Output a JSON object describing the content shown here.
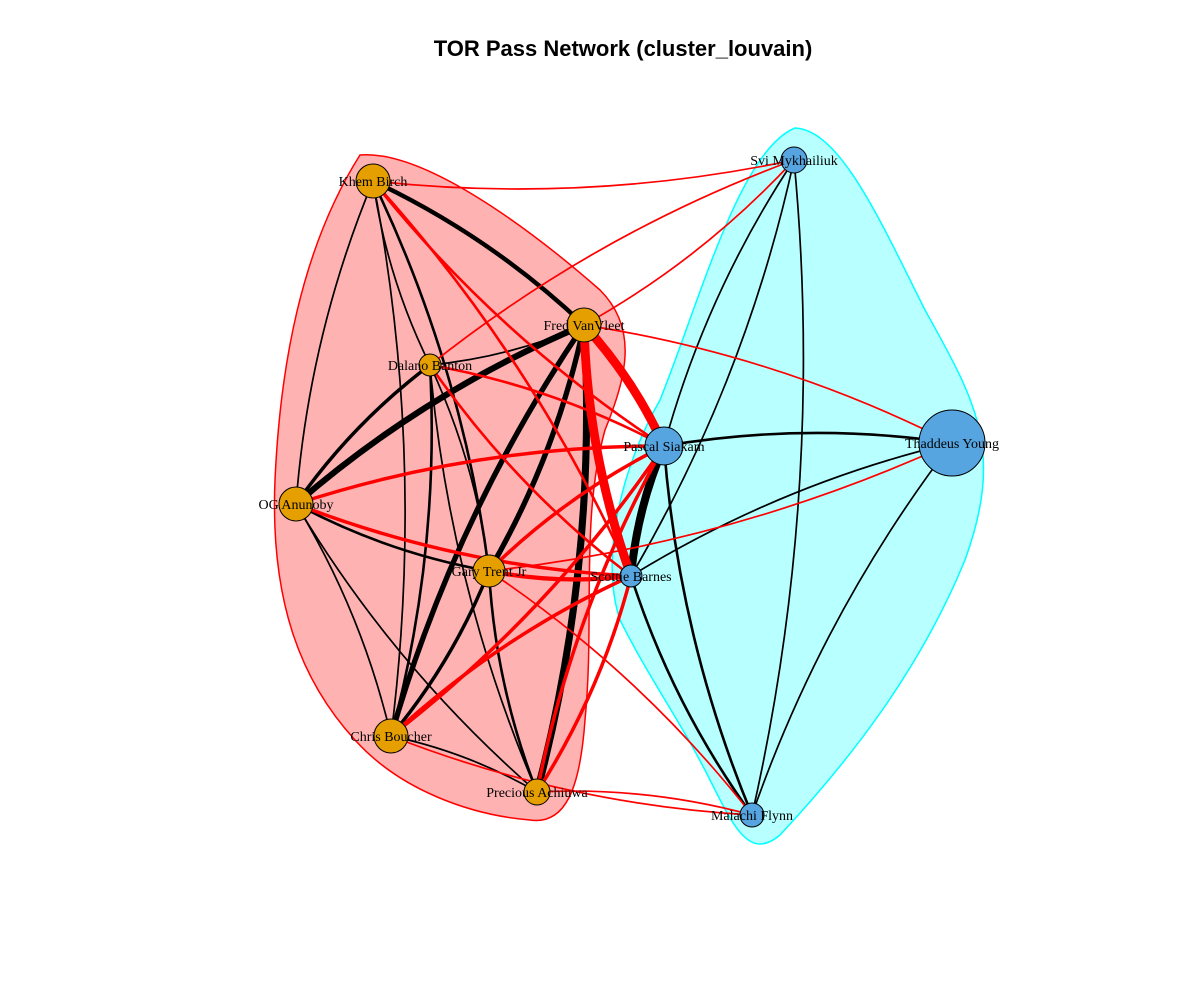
{
  "title": "TOR Pass Network (cluster_louvain)",
  "colors": {
    "group1_fill": "rgba(255,0,0,0.30)",
    "group1_border": "#ff0000",
    "group2_fill": "rgba(0,255,255,0.28)",
    "group2_border": "#00ffff",
    "node_group1": "#e69f00",
    "node_group2": "#56a5e0",
    "edge_within": "#000000",
    "edge_between": "#ff0000"
  },
  "nodes": [
    {
      "id": "khem",
      "label": "Khem Birch",
      "group": 1
    },
    {
      "id": "fred",
      "label": "Fred VanVleet",
      "group": 1
    },
    {
      "id": "dalano",
      "label": "Dalano Banton",
      "group": 1
    },
    {
      "id": "og",
      "label": "OG Anunoby",
      "group": 1
    },
    {
      "id": "gary",
      "label": "Gary Trent Jr",
      "group": 1
    },
    {
      "id": "chris",
      "label": "Chris Boucher",
      "group": 1
    },
    {
      "id": "precious",
      "label": "Precious Achiuwa",
      "group": 1
    },
    {
      "id": "svi",
      "label": "Svi Mykhailiuk",
      "group": 2
    },
    {
      "id": "pascal",
      "label": "Pascal Siakam",
      "group": 2
    },
    {
      "id": "thaddeus",
      "label": "Thaddeus Young",
      "group": 2
    },
    {
      "id": "scottie",
      "label": "Scottie Barnes",
      "group": 2
    },
    {
      "id": "malachi",
      "label": "Malachi Flynn",
      "group": 2
    }
  ],
  "edges": [
    {
      "source": "fred",
      "target": "og",
      "weight": 6
    },
    {
      "source": "fred",
      "target": "precious",
      "weight": 7
    },
    {
      "source": "fred",
      "target": "chris",
      "weight": 5
    },
    {
      "source": "fred",
      "target": "gary",
      "weight": 5
    },
    {
      "source": "fred",
      "target": "khem",
      "weight": 4
    },
    {
      "source": "fred",
      "target": "dalano",
      "weight": 1
    },
    {
      "source": "khem",
      "target": "og",
      "weight": 1
    },
    {
      "source": "khem",
      "target": "chris",
      "weight": 1
    },
    {
      "source": "khem",
      "target": "dalano",
      "weight": 1
    },
    {
      "source": "khem",
      "target": "gary",
      "weight": 2
    },
    {
      "source": "dalano",
      "target": "og",
      "weight": 3
    },
    {
      "source": "dalano",
      "target": "chris",
      "weight": 2
    },
    {
      "source": "dalano",
      "target": "precious",
      "weight": 1
    },
    {
      "source": "dalano",
      "target": "gary",
      "weight": 1
    },
    {
      "source": "og",
      "target": "gary",
      "weight": 2
    },
    {
      "source": "og",
      "target": "chris",
      "weight": 1
    },
    {
      "source": "og",
      "target": "precious",
      "weight": 1
    },
    {
      "source": "gary",
      "target": "chris",
      "weight": 3
    },
    {
      "source": "gary",
      "target": "precious",
      "weight": 2
    },
    {
      "source": "chris",
      "target": "precious",
      "weight": 1
    },
    {
      "source": "pascal",
      "target": "scottie",
      "weight": 8
    },
    {
      "source": "pascal",
      "target": "thaddeus",
      "weight": 2
    },
    {
      "source": "pascal",
      "target": "malachi",
      "weight": 2
    },
    {
      "source": "pascal",
      "target": "svi",
      "weight": 1
    },
    {
      "source": "scottie",
      "target": "malachi",
      "weight": 2
    },
    {
      "source": "scottie",
      "target": "thaddeus",
      "weight": 1
    },
    {
      "source": "scottie",
      "target": "svi",
      "weight": 1
    },
    {
      "source": "svi",
      "target": "malachi",
      "weight": 1
    },
    {
      "source": "thaddeus",
      "target": "malachi",
      "weight": 1
    },
    {
      "source": "fred",
      "target": "pascal",
      "weight": 9
    },
    {
      "source": "fred",
      "target": "scottie",
      "weight": 9
    },
    {
      "source": "fred",
      "target": "thaddeus",
      "weight": 1
    },
    {
      "source": "fred",
      "target": "svi",
      "weight": 1
    },
    {
      "source": "og",
      "target": "pascal",
      "weight": 3
    },
    {
      "source": "og",
      "target": "scottie",
      "weight": 3
    },
    {
      "source": "gary",
      "target": "pascal",
      "weight": 3
    },
    {
      "source": "gary",
      "target": "scottie",
      "weight": 4
    },
    {
      "source": "gary",
      "target": "malachi",
      "weight": 1
    },
    {
      "source": "chris",
      "target": "pascal",
      "weight": 3
    },
    {
      "source": "chris",
      "target": "scottie",
      "weight": 3
    },
    {
      "source": "chris",
      "target": "malachi",
      "weight": 1
    },
    {
      "source": "precious",
      "target": "pascal",
      "weight": 3
    },
    {
      "source": "precious",
      "target": "scottie",
      "weight": 3
    },
    {
      "source": "precious",
      "target": "malachi",
      "weight": 1
    },
    {
      "source": "khem",
      "target": "pascal",
      "weight": 2
    },
    {
      "source": "khem",
      "target": "scottie",
      "weight": 2
    },
    {
      "source": "khem",
      "target": "svi",
      "weight": 1
    },
    {
      "source": "dalano",
      "target": "pascal",
      "weight": 2
    },
    {
      "source": "dalano",
      "target": "scottie",
      "weight": 2
    },
    {
      "source": "dalano",
      "target": "svi",
      "weight": 1
    },
    {
      "source": "gary",
      "target": "thaddeus",
      "weight": 1
    }
  ]
}
